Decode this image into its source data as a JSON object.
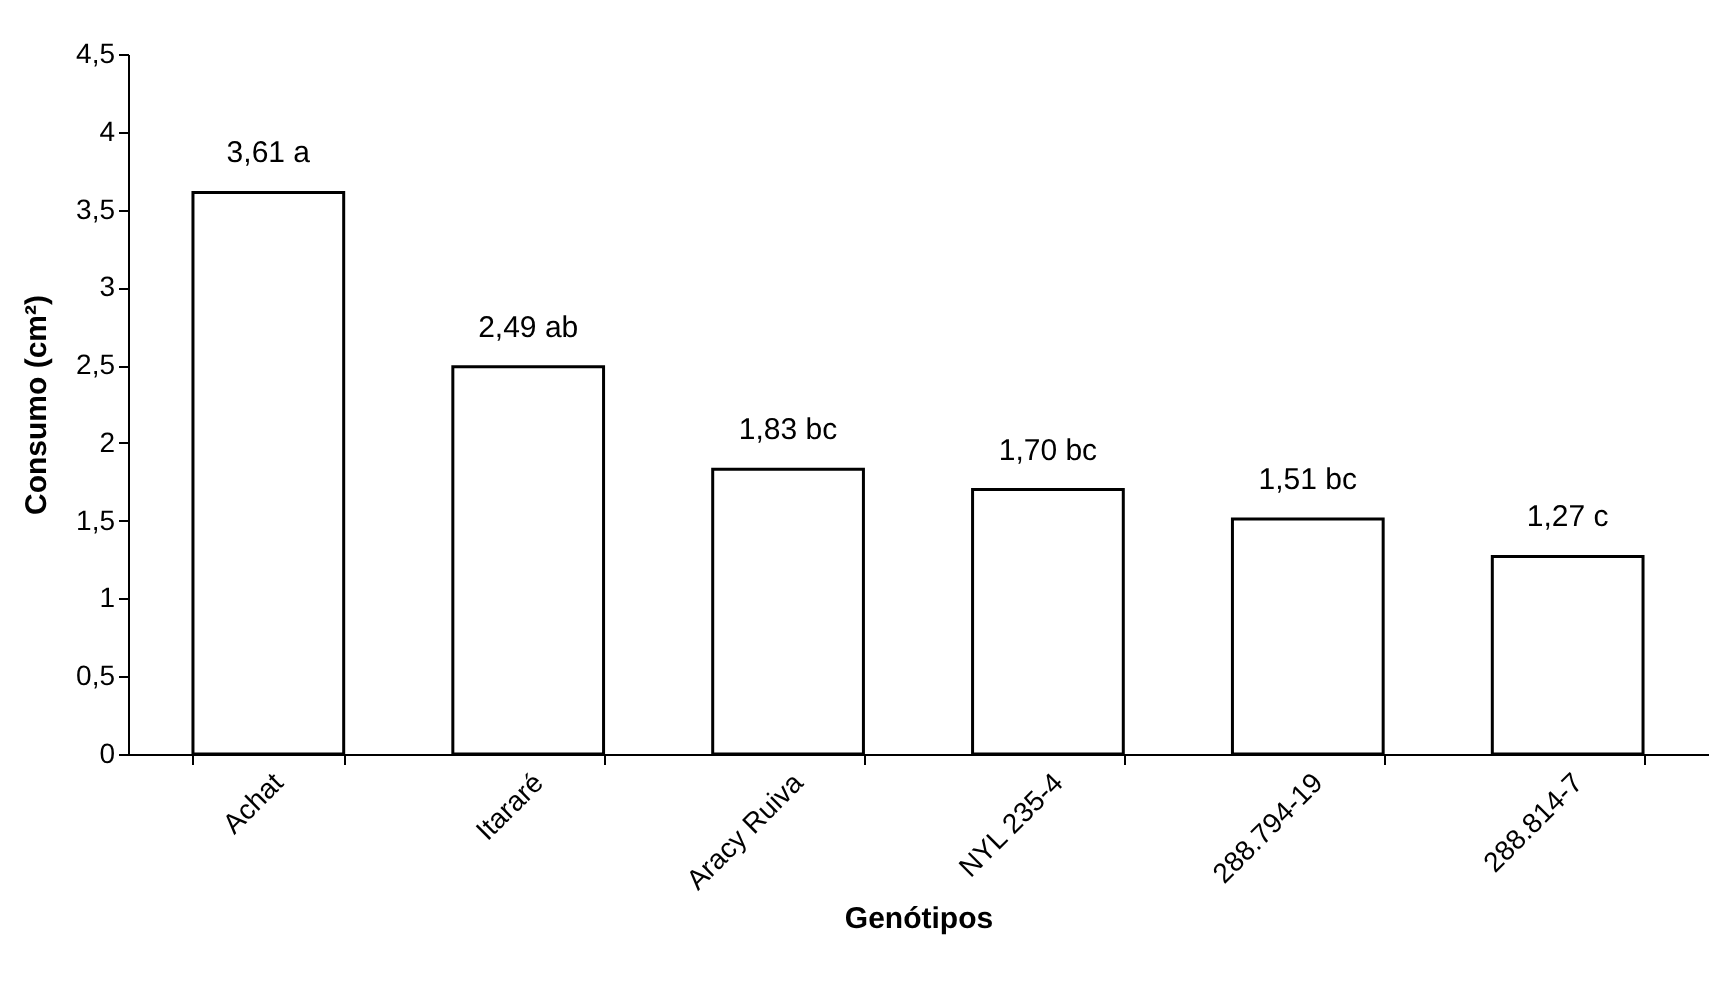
{
  "chart_data": {
    "type": "bar",
    "xlabel": "Genótipos",
    "ylabel": "Consumo (cm²)",
    "categories": [
      "Achat",
      "Itararé",
      "Aracy Ruiva",
      "NYL 235-4",
      "288.794-19",
      "288.814-7"
    ],
    "values": [
      3.61,
      2.49,
      1.83,
      1.7,
      1.51,
      1.27
    ],
    "value_labels": [
      "3,61 a",
      "2,49 ab",
      "1,83 bc",
      "1,70 bc",
      "1,51 bc",
      "1,27 c"
    ],
    "color": "#ffffff",
    "ylim": [
      0,
      4.5
    ],
    "yticks": [
      0,
      {
        "value": 0.5,
        "label": "0,5"
      },
      1,
      {
        "value": 1.5,
        "label": "1,5"
      },
      2,
      {
        "value": 2.5,
        "label": "2,5"
      },
      3,
      {
        "value": 3.5,
        "label": "3,5"
      },
      4,
      {
        "value": 4.5,
        "label": "4,5"
      }
    ],
    "grid": false
  }
}
